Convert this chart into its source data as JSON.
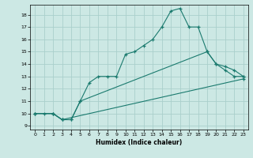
{
  "xlabel": "Humidex (Indice chaleur)",
  "bg_color": "#cce8e4",
  "grid_color": "#aacfcc",
  "line_color": "#1a7a6e",
  "xlim": [
    -0.5,
    23.5
  ],
  "ylim": [
    8.7,
    18.8
  ],
  "yticks": [
    9,
    10,
    11,
    12,
    13,
    14,
    15,
    16,
    17,
    18
  ],
  "xticks": [
    0,
    1,
    2,
    3,
    4,
    5,
    6,
    7,
    8,
    9,
    10,
    11,
    12,
    13,
    14,
    15,
    16,
    17,
    18,
    19,
    20,
    21,
    22,
    23
  ],
  "line1_x": [
    0,
    1,
    2,
    3,
    4,
    5,
    6,
    7,
    8,
    9,
    10,
    11,
    12,
    13,
    14,
    15,
    16,
    17,
    18,
    19,
    20,
    21,
    22,
    23
  ],
  "line1_y": [
    10,
    10,
    10,
    9.5,
    9.5,
    11,
    12.5,
    13,
    13,
    13,
    14.8,
    15,
    15.5,
    16,
    17,
    18.3,
    18.5,
    17,
    17,
    15,
    14,
    13.5,
    13,
    13
  ],
  "line2_x": [
    0,
    2,
    3,
    4,
    5,
    19,
    20,
    21,
    22,
    23
  ],
  "line2_y": [
    10,
    10,
    9.5,
    9.5,
    11,
    15,
    14,
    13.8,
    13.5,
    13
  ],
  "line3_x": [
    0,
    2,
    3,
    23
  ],
  "line3_y": [
    10,
    10,
    9.5,
    12.8
  ]
}
